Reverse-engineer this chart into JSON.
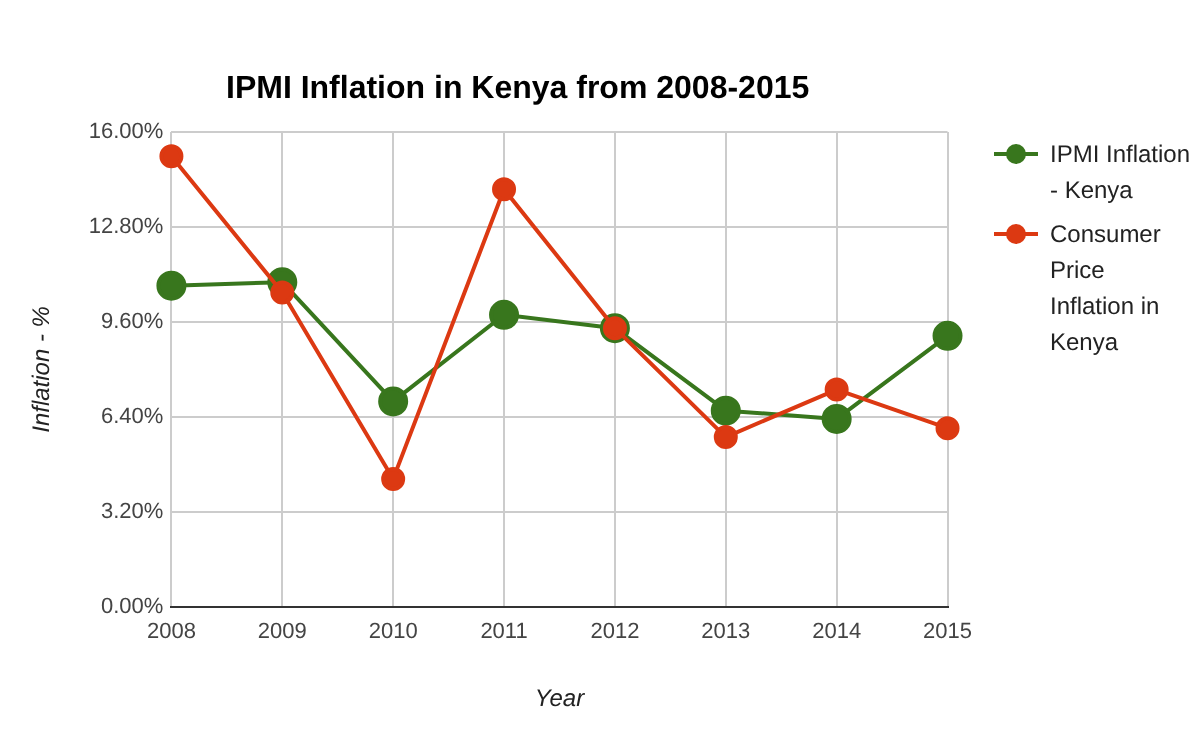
{
  "chart_data": {
    "type": "line",
    "title": "IPMI Inflation in Kenya from 2008-2015",
    "xlabel": "Year",
    "ylabel": "Inflation - %",
    "categories": [
      "2008",
      "2009",
      "2010",
      "2011",
      "2012",
      "2013",
      "2014",
      "2015"
    ],
    "series": [
      {
        "name": "IPMI Inflation - Kenya",
        "color": "#38761d",
        "values": [
          10.82,
          10.94,
          6.92,
          9.84,
          9.39,
          6.61,
          6.33,
          9.13
        ]
      },
      {
        "name": "Consumer Price Inflation in Kenya",
        "color": "#dc3912",
        "values": [
          15.18,
          10.59,
          4.31,
          14.07,
          9.39,
          5.72,
          7.32,
          6.02
        ]
      }
    ],
    "ylim": [
      0,
      16
    ],
    "yticks": [
      {
        "value": 0,
        "label": "0.00%"
      },
      {
        "value": 3.2,
        "label": "3.20%"
      },
      {
        "value": 6.4,
        "label": "6.40%"
      },
      {
        "value": 9.6,
        "label": "9.60%"
      },
      {
        "value": 12.8,
        "label": "12.80%"
      },
      {
        "value": 16,
        "label": "16.00%"
      }
    ],
    "grid": true,
    "legend": "right",
    "marker": "circle",
    "line_style": "solid"
  }
}
